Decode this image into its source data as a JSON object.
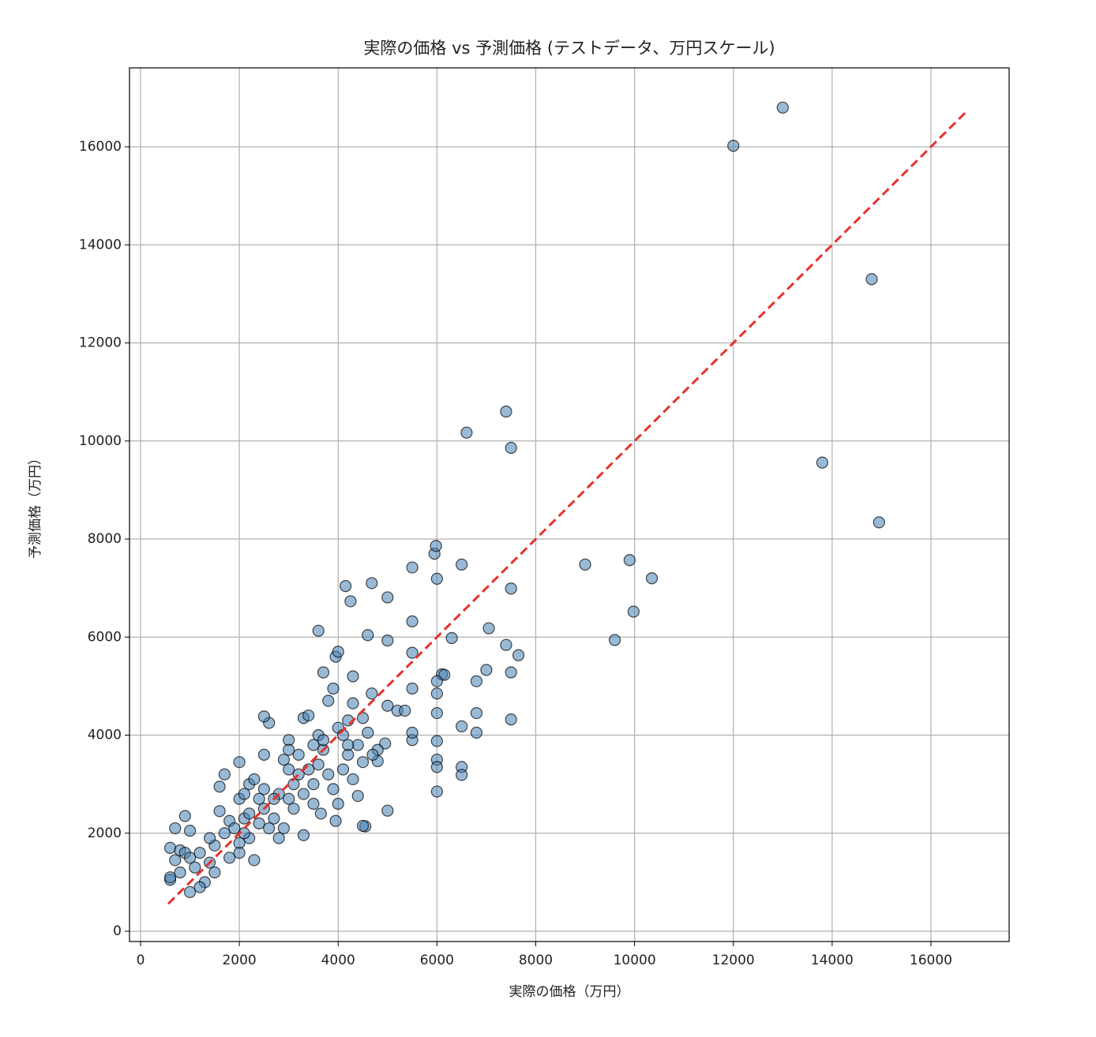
{
  "chart_data": {
    "type": "scatter",
    "title": "実際の価格 vs 予測価格 (テストデータ、万円スケール)",
    "x_label": "実際の価格（万円）",
    "y_label": "予測価格（万円）",
    "xlim": [
      -224,
      17583
    ],
    "ylim": [
      -209,
      17610
    ],
    "xticks": [
      0,
      2000,
      4000,
      6000,
      8000,
      10000,
      12000,
      14000,
      16000
    ],
    "yticks": [
      0,
      2000,
      4000,
      6000,
      8000,
      10000,
      12000,
      14000,
      16000
    ],
    "grid": true,
    "color": "#4682b4",
    "edge_color": "#000000",
    "reference_line": {
      "x": [
        560,
        16690
      ],
      "y": [
        560,
        16690
      ],
      "color": "#e8312a"
    },
    "x": [
      12000,
      13000,
      14800,
      13800,
      14950,
      9000,
      9900,
      10350,
      9980,
      9600,
      7400,
      6600,
      7500,
      5950,
      5980,
      6500,
      5500,
      6000,
      4150,
      4680,
      4250,
      5000,
      7500,
      3600,
      4600,
      5500,
      5000,
      6300,
      7050,
      7400,
      7650,
      3950,
      4000,
      5500,
      6100,
      6150,
      6000,
      6800,
      7000,
      7500,
      4300,
      3700,
      5500,
      6000,
      4680,
      5000,
      5200,
      5350,
      6000,
      6500,
      6800,
      6800,
      7500,
      5500,
      5500,
      6000,
      6000,
      6000,
      6500,
      6500,
      6000,
      5000,
      4550,
      4500,
      4400,
      4950,
      4800,
      4800,
      4500,
      4500,
      3950,
      3300,
      3650,
      3500,
      600,
      600,
      700,
      600,
      800,
      900,
      1000,
      1000,
      700,
      900,
      1000,
      1200,
      1300,
      1400,
      1500,
      1600,
      1600,
      1700,
      1800,
      2000,
      2000,
      2100,
      2200,
      2000,
      2200,
      2300,
      2400,
      2500,
      2500,
      2600,
      2500,
      2700,
      2800,
      2900,
      3000,
      3000,
      3100,
      3200,
      3300,
      3400,
      3500,
      3600,
      3700,
      3800,
      3900,
      4000,
      4100,
      4200,
      4300,
      4400,
      3800,
      3500,
      3300,
      2200,
      2400,
      1800,
      1900,
      2000,
      1500,
      1200,
      800,
      3000,
      2700,
      2600,
      2900,
      3100,
      2100,
      2300,
      1700,
      4100,
      3000,
      3400,
      3600,
      4300,
      4600,
      4200,
      3900,
      1100,
      1400,
      2800,
      3200,
      3700,
      4000,
      4200,
      4700,
      2500,
      2100
    ],
    "values": [
      16020,
      16800,
      13300,
      9560,
      8340,
      7480,
      7570,
      7200,
      6520,
      5940,
      10600,
      10170,
      9860,
      7700,
      7860,
      7480,
      7420,
      7190,
      7040,
      7100,
      6730,
      6810,
      6990,
      6130,
      6040,
      6320,
      5930,
      5980,
      6180,
      5840,
      5630,
      5600,
      5700,
      5680,
      5240,
      5230,
      5100,
      5100,
      5330,
      5280,
      5200,
      5280,
      4950,
      4850,
      4850,
      4600,
      4500,
      4500,
      4450,
      4180,
      4450,
      4050,
      4320,
      3900,
      4050,
      3880,
      3500,
      3350,
      3350,
      3190,
      2850,
      2460,
      2140,
      2150,
      2760,
      3830,
      3700,
      3470,
      4350,
      3450,
      2250,
      1960,
      2400,
      2600,
      1050,
      1100,
      1450,
      1700,
      1650,
      1600,
      1500,
      800,
      2100,
      2350,
      2050,
      1600,
      1000,
      1400,
      1750,
      2450,
      2950,
      3200,
      2250,
      3450,
      2700,
      2300,
      3000,
      1800,
      1900,
      1450,
      2200,
      2900,
      3600,
      4250,
      4380,
      2300,
      2800,
      3500,
      3300,
      2700,
      3000,
      3600,
      4350,
      4400,
      3800,
      4000,
      3700,
      4700,
      4950,
      4150,
      3300,
      3600,
      3100,
      3800,
      3200,
      3000,
      2800,
      2400,
      2700,
      1500,
      2100,
      1600,
      1200,
      900,
      1200,
      3900,
      2700,
      2100,
      2100,
      2500,
      2800,
      3100,
      2000,
      4000,
      3700,
      3300,
      3400,
      4650,
      4050,
      4300,
      2900,
      1300,
      1900,
      1900,
      3200,
      3900,
      2600,
      3800,
      3600,
      2500,
      2000
    ]
  }
}
